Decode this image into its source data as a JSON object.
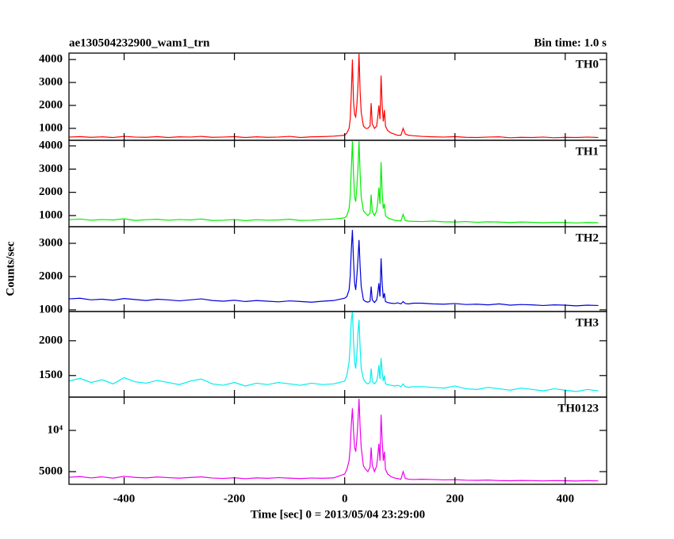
{
  "chart_data": {
    "type": "line",
    "title": "ae130504232900_wam1_trn",
    "subtitle": "Bin time: 1.0 s",
    "xlabel": "Time [sec] 0 = 2013/05/04 23:29:00",
    "ylabel": "Counts/sec",
    "xlim": [
      -500,
      475
    ],
    "xticks": [
      -400,
      -200,
      0,
      200,
      400
    ],
    "x": [
      -500,
      -480,
      -460,
      -440,
      -420,
      -400,
      -380,
      -360,
      -340,
      -320,
      -300,
      -280,
      -260,
      -240,
      -220,
      -200,
      -180,
      -160,
      -140,
      -120,
      -100,
      -80,
      -60,
      -40,
      -20,
      0,
      4,
      8,
      10,
      12,
      14,
      16,
      18,
      20,
      22,
      24,
      26,
      28,
      30,
      34,
      38,
      42,
      46,
      48,
      50,
      54,
      58,
      60,
      62,
      64,
      66,
      68,
      70,
      72,
      74,
      78,
      84,
      90,
      96,
      102,
      106,
      110,
      116,
      124,
      140,
      160,
      180,
      200,
      220,
      240,
      260,
      280,
      300,
      320,
      340,
      360,
      380,
      400,
      420,
      440,
      460
    ],
    "series": [
      {
        "name": "TH0",
        "color": "#ff0000",
        "log": false,
        "ylim": [
          480,
          4280
        ],
        "yticks": [
          1000,
          2000,
          3000,
          4000
        ],
        "values": [
          620,
          640,
          610,
          630,
          600,
          650,
          620,
          610,
          640,
          600,
          630,
          620,
          650,
          610,
          620,
          640,
          600,
          630,
          610,
          620,
          650,
          600,
          630,
          640,
          660,
          700,
          800,
          1000,
          1400,
          2500,
          4000,
          2200,
          1600,
          1500,
          2000,
          2800,
          4250,
          2600,
          1700,
          1100,
          1000,
          1000,
          1100,
          2100,
          1200,
          1000,
          1100,
          1500,
          2000,
          1400,
          3300,
          2000,
          1300,
          1800,
          1100,
          900,
          800,
          750,
          700,
          700,
          1000,
          750,
          700,
          680,
          650,
          630,
          620,
          640,
          610,
          600,
          620,
          630,
          590,
          610,
          600,
          620,
          590,
          610,
          600,
          620,
          600
        ]
      },
      {
        "name": "TH1",
        "color": "#00ee00",
        "log": false,
        "ylim": [
          520,
          4240
        ],
        "yticks": [
          1000,
          2000,
          3000,
          4000
        ],
        "values": [
          820,
          850,
          800,
          830,
          810,
          860,
          790,
          820,
          840,
          800,
          830,
          810,
          850,
          790,
          800,
          830,
          780,
          820,
          800,
          810,
          840,
          790,
          800,
          830,
          850,
          900,
          1000,
          1300,
          1800,
          3000,
          4200,
          2800,
          1800,
          1600,
          2200,
          3000,
          4200,
          2800,
          1800,
          1200,
          1100,
          1000,
          1100,
          1900,
          1200,
          1000,
          1200,
          1600,
          2200,
          1500,
          3300,
          2000,
          1300,
          1500,
          1000,
          900,
          850,
          800,
          780,
          770,
          1050,
          780,
          760,
          750,
          740,
          760,
          730,
          720,
          740,
          710,
          730,
          720,
          700,
          720,
          710,
          690,
          710,
          700,
          680,
          700,
          690
        ]
      },
      {
        "name": "TH2",
        "color": "#0000dd",
        "log": false,
        "ylim": [
          950,
          3500
        ],
        "yticks": [
          1000,
          2000,
          3000
        ],
        "values": [
          1330,
          1350,
          1300,
          1320,
          1290,
          1340,
          1310,
          1280,
          1320,
          1300,
          1270,
          1300,
          1330,
          1280,
          1260,
          1290,
          1250,
          1280,
          1260,
          1240,
          1270,
          1250,
          1230,
          1260,
          1280,
          1350,
          1400,
          1600,
          2000,
          2800,
          3400,
          2500,
          1800,
          1600,
          2000,
          2500,
          3100,
          2300,
          1700,
          1300,
          1250,
          1230,
          1260,
          1700,
          1300,
          1220,
          1300,
          1500,
          1800,
          1400,
          2550,
          1800,
          1350,
          1500,
          1250,
          1220,
          1200,
          1190,
          1210,
          1180,
          1250,
          1190,
          1180,
          1200,
          1200,
          1180,
          1170,
          1190,
          1160,
          1170,
          1150,
          1180,
          1140,
          1160,
          1150,
          1130,
          1150,
          1140,
          1120,
          1140,
          1130
        ]
      },
      {
        "name": "TH3",
        "color": "#00eeee",
        "log": false,
        "ylim": [
          1190,
          2420
        ],
        "yticks": [
          1500,
          2000
        ],
        "values": [
          1420,
          1460,
          1400,
          1440,
          1380,
          1470,
          1410,
          1390,
          1430,
          1400,
          1370,
          1420,
          1450,
          1380,
          1360,
          1400,
          1350,
          1390,
          1370,
          1400,
          1380,
          1360,
          1390,
          1370,
          1380,
          1420,
          1500,
          1700,
          1950,
          2300,
          2420,
          2000,
          1700,
          1600,
          1800,
          2100,
          2300,
          1900,
          1600,
          1450,
          1400,
          1380,
          1400,
          1600,
          1420,
          1380,
          1420,
          1500,
          1650,
          1450,
          1750,
          1550,
          1420,
          1500,
          1380,
          1370,
          1360,
          1350,
          1360,
          1340,
          1380,
          1340,
          1330,
          1340,
          1340,
          1330,
          1320,
          1350,
          1310,
          1300,
          1330,
          1310,
          1290,
          1320,
          1300,
          1280,
          1310,
          1290,
          1270,
          1300,
          1280
        ]
      },
      {
        "name": "TH0123",
        "color": "#ee00ee",
        "log": true,
        "ylim": [
          4040,
          17500
        ],
        "yticks": [
          5000,
          {
            "value": 10000,
            "label": "10⁴"
          }
        ],
        "values": [
          4550,
          4600,
          4500,
          4580,
          4480,
          4620,
          4540,
          4500,
          4570,
          4520,
          4480,
          4530,
          4580,
          4490,
          4460,
          4510,
          4440,
          4500,
          4470,
          4520,
          4480,
          4450,
          4490,
          4470,
          4500,
          4800,
          5200,
          6000,
          7500,
          11000,
          14500,
          10000,
          7500,
          7000,
          8500,
          11500,
          17000,
          10500,
          7500,
          5500,
          5200,
          5000,
          5400,
          7500,
          5600,
          5000,
          5500,
          6500,
          8000,
          6000,
          13000,
          8500,
          6000,
          7000,
          5200,
          4800,
          4600,
          4500,
          4450,
          4400,
          5000,
          4450,
          4400,
          4380,
          4400,
          4380,
          4350,
          4370,
          4330,
          4320,
          4340,
          4300,
          4290,
          4310,
          4300,
          4280,
          4300,
          4290,
          4270,
          4300,
          4280
        ]
      }
    ]
  }
}
